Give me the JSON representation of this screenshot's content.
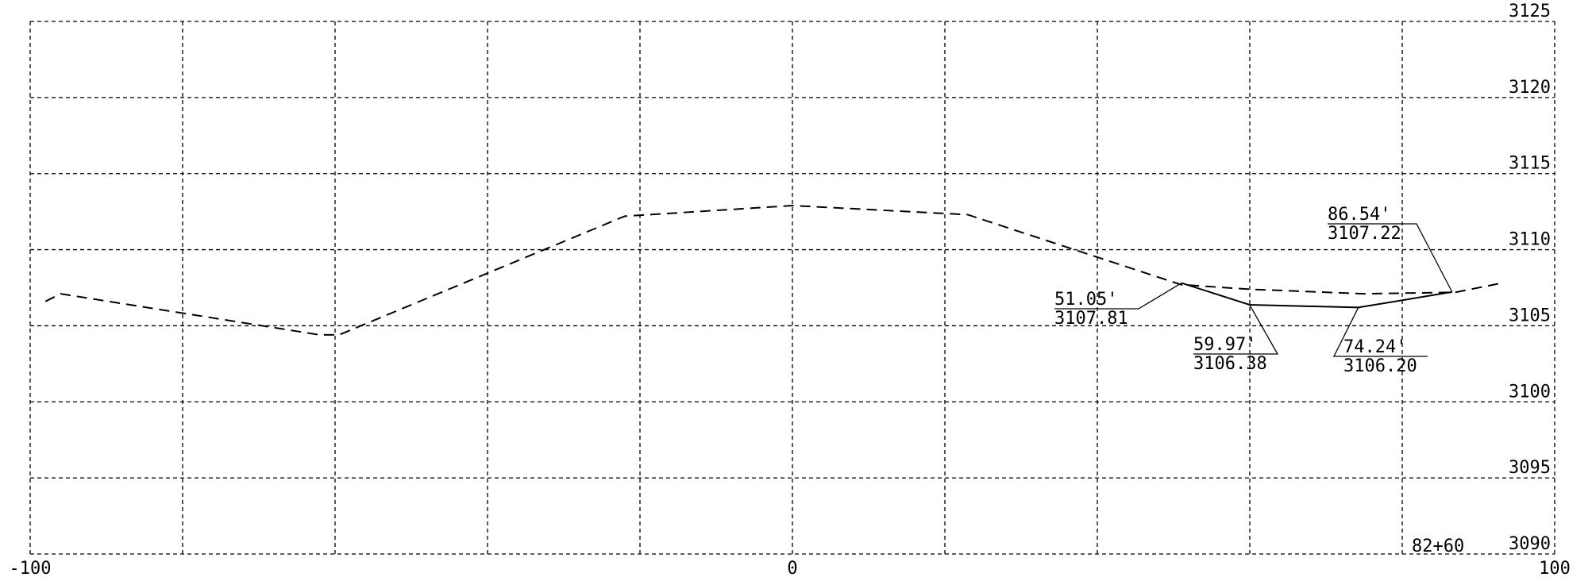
{
  "chart_data": {
    "type": "line",
    "title": "",
    "xlabel": "",
    "ylabel": "",
    "xlim": [
      -100,
      100
    ],
    "ylim": [
      3090,
      3125
    ],
    "grid": true,
    "x_grid_step": 20,
    "y_grid_step": 5,
    "x_tick_labels": [
      "-100",
      "0",
      "100"
    ],
    "x_tick_values": [
      -100,
      0,
      100
    ],
    "y_tick_labels": [
      "3090",
      "3095",
      "3100",
      "3105",
      "3110",
      "3115",
      "3120",
      "3125"
    ],
    "y_tick_values": [
      3090,
      3095,
      3100,
      3105,
      3110,
      3115,
      3120,
      3125
    ],
    "station_label": "82+60",
    "series": [
      {
        "style": "dashed",
        "x": [
          -98,
          -96,
          -62,
          -59.5,
          -22,
          0,
          23,
          51,
          60,
          75,
          87,
          93
        ],
        "y": [
          3106.6,
          3107.1,
          3104.4,
          3104.4,
          3112.2,
          3112.9,
          3112.3,
          3107.7,
          3107.4,
          3107.1,
          3107.2,
          3107.8
        ]
      },
      {
        "style": "solid",
        "x": [
          51.05,
          59.97,
          74.24,
          86.54
        ],
        "y": [
          3107.81,
          3106.38,
          3106.2,
          3107.22
        ]
      }
    ],
    "annotations": [
      {
        "offset": "51.05'",
        "elevation": "3107.81",
        "x": 51.05,
        "y": 3107.81
      },
      {
        "offset": "59.97'",
        "elevation": "3106.38",
        "x": 59.97,
        "y": 3106.38
      },
      {
        "offset": "74.24'",
        "elevation": "3106.20",
        "x": 74.24,
        "y": 3106.2
      },
      {
        "offset": "86.54'",
        "elevation": "3107.22",
        "x": 86.54,
        "y": 3107.22
      }
    ]
  }
}
